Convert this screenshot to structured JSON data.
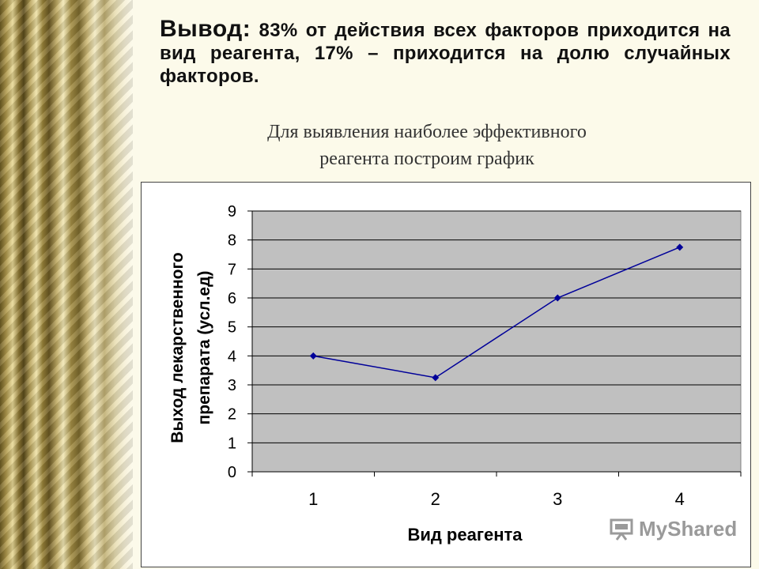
{
  "conclusion": {
    "lead": "Вывод:",
    "text": " 83% от действия всех факторов приходится на вид реагента, 17% – приходится на долю случайных факторов."
  },
  "subtitle": {
    "line1": "Для выявления наиболее эффективного",
    "line2": "реагента построим график"
  },
  "chart_data": {
    "type": "line",
    "x": [
      1,
      2,
      3,
      4
    ],
    "x_tick_labels": [
      "1",
      "2",
      "3",
      "4"
    ],
    "series": [
      {
        "values": [
          4,
          3.25,
          6,
          7.75
        ],
        "color": "#000099"
      }
    ],
    "xlabel": "Вид реагента",
    "ylabel_line1": "Выход лекарственного",
    "ylabel_line2": "препарата (усл.ед)",
    "ylim": [
      0,
      9
    ],
    "y_ticks": [
      "0",
      "1",
      "2",
      "3",
      "4",
      "5",
      "6",
      "7",
      "8",
      "9"
    ],
    "grid": true,
    "plot_background": "#c0c0c0"
  },
  "watermark": {
    "text": "MyShared"
  }
}
